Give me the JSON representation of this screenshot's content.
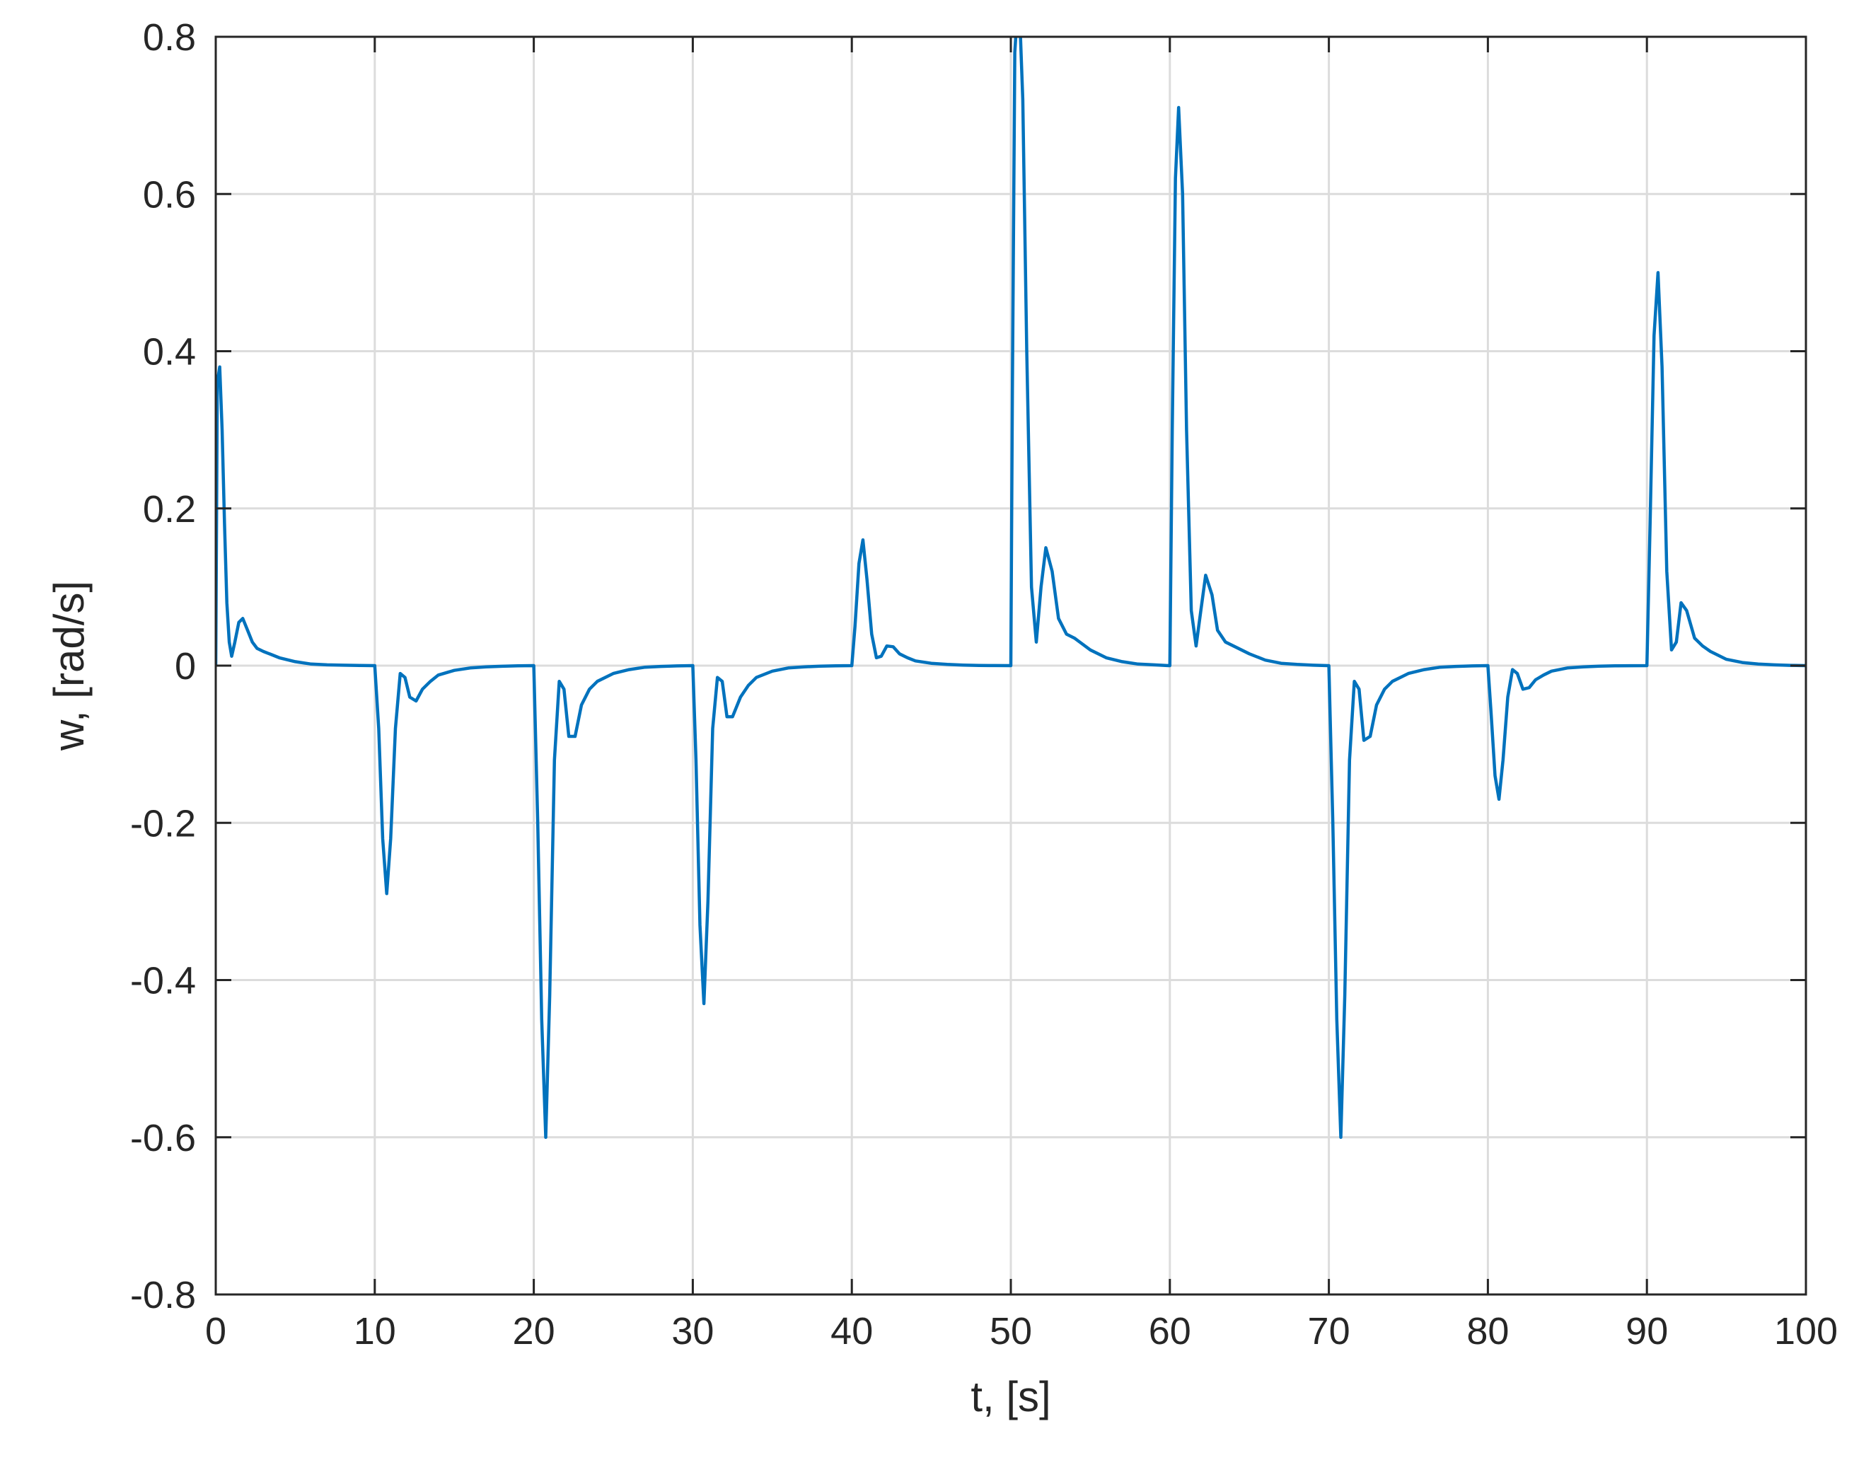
{
  "chart_data": {
    "type": "line",
    "title": "",
    "xlabel": "t, [s]",
    "ylabel": "w, [rad/s]",
    "xlim": [
      0,
      100
    ],
    "ylim": [
      -0.8,
      0.8
    ],
    "xticks": [
      "0",
      "10",
      "20",
      "30",
      "40",
      "50",
      "60",
      "70",
      "80",
      "90",
      "100"
    ],
    "yticks": [
      "0.8",
      "0.6",
      "0.4",
      "0.2",
      "0",
      "-0.2",
      "-0.4",
      "-0.6",
      "-0.8"
    ],
    "grid": true,
    "line_color": "#0072BD",
    "series": [
      {
        "x": [
          0,
          0.1,
          0.25,
          0.4,
          0.55,
          0.7,
          0.85,
          1.0,
          1.2,
          1.45,
          1.7,
          2.0,
          2.3,
          2.6,
          3.0,
          3.5,
          4,
          5,
          6,
          7,
          8,
          9,
          9.95,
          10.0,
          10.25,
          10.5,
          10.75,
          11.0,
          11.3,
          11.6,
          11.9,
          12.2,
          12.6,
          13.0,
          13.5,
          14,
          15,
          16,
          17,
          18,
          19,
          19.95,
          20.0,
          20.25,
          20.5,
          20.75,
          21.0,
          21.3,
          21.6,
          21.9,
          22.2,
          22.6,
          23.0,
          23.5,
          24,
          25,
          26,
          27,
          28,
          29,
          29.95,
          30.0,
          30.2,
          30.45,
          30.7,
          30.95,
          31.25,
          31.55,
          31.85,
          32.15,
          32.5,
          33.0,
          33.5,
          34,
          35,
          36,
          37,
          38,
          39,
          39.95,
          40.0,
          40.2,
          40.45,
          40.7,
          40.95,
          41.25,
          41.55,
          41.85,
          42.2,
          42.6,
          43.0,
          43.5,
          44,
          45,
          46,
          47,
          48,
          49,
          49.95,
          50.0,
          50.1,
          50.25,
          50.5,
          50.75,
          51.0,
          51.3,
          51.6,
          51.9,
          52.2,
          52.6,
          53.0,
          53.5,
          54.0,
          55,
          56,
          57,
          58,
          59,
          59.95,
          60.0,
          60.15,
          60.35,
          60.55,
          60.8,
          61.05,
          61.35,
          61.65,
          61.95,
          62.25,
          62.65,
          63.0,
          63.5,
          64,
          65,
          66,
          67,
          68,
          69,
          69.95,
          70.0,
          70.25,
          70.5,
          70.75,
          71.0,
          71.3,
          71.6,
          71.9,
          72.2,
          72.6,
          73.0,
          73.5,
          74,
          75,
          76,
          77,
          78,
          79,
          79.95,
          80.0,
          80.2,
          80.45,
          80.7,
          80.95,
          81.25,
          81.55,
          81.85,
          82.2,
          82.6,
          83.0,
          83.5,
          84,
          85,
          86,
          87,
          88,
          89,
          89.95,
          90.0,
          90.2,
          90.45,
          90.7,
          90.95,
          91.25,
          91.55,
          91.85,
          92.15,
          92.5,
          93.0,
          93.5,
          94,
          95,
          96,
          97,
          98,
          99,
          100
        ],
        "y": [
          0,
          0.36,
          0.38,
          0.3,
          0.18,
          0.08,
          0.03,
          0.012,
          0.03,
          0.055,
          0.06,
          0.045,
          0.03,
          0.022,
          0.018,
          0.014,
          0.01,
          0.005,
          0.002,
          0.001,
          0.0005,
          0.0002,
          0,
          0,
          -0.08,
          -0.22,
          -0.29,
          -0.22,
          -0.08,
          -0.01,
          -0.015,
          -0.04,
          -0.045,
          -0.03,
          -0.02,
          -0.012,
          -0.006,
          -0.003,
          -0.0015,
          -0.0008,
          -0.0003,
          0,
          0,
          -0.2,
          -0.45,
          -0.6,
          -0.42,
          -0.12,
          -0.02,
          -0.03,
          -0.09,
          -0.09,
          -0.05,
          -0.03,
          -0.02,
          -0.01,
          -0.005,
          -0.002,
          -0.001,
          -0.0004,
          0,
          0,
          -0.12,
          -0.33,
          -0.43,
          -0.3,
          -0.08,
          -0.015,
          -0.02,
          -0.065,
          -0.065,
          -0.04,
          -0.025,
          -0.015,
          -0.007,
          -0.003,
          -0.0015,
          -0.0007,
          -0.0003,
          0,
          0,
          0.05,
          0.13,
          0.16,
          0.11,
          0.04,
          0.01,
          0.012,
          0.025,
          0.024,
          0.015,
          0.01,
          0.006,
          0.003,
          0.0015,
          0.0007,
          0.0003,
          0.0001,
          0,
          0,
          0.35,
          0.78,
          0.86,
          0.72,
          0.4,
          0.1,
          0.03,
          0.1,
          0.15,
          0.12,
          0.06,
          0.04,
          0.035,
          0.02,
          0.01,
          0.005,
          0.002,
          0.001,
          0,
          0,
          0.3,
          0.62,
          0.71,
          0.6,
          0.3,
          0.07,
          0.025,
          0.07,
          0.115,
          0.09,
          0.045,
          0.03,
          0.025,
          0.015,
          0.007,
          0.003,
          0.0015,
          0.0005,
          0,
          0,
          -0.2,
          -0.45,
          -0.6,
          -0.42,
          -0.12,
          -0.02,
          -0.03,
          -0.095,
          -0.09,
          -0.05,
          -0.03,
          -0.02,
          -0.01,
          -0.005,
          -0.002,
          -0.001,
          -0.0004,
          0,
          0,
          -0.06,
          -0.14,
          -0.17,
          -0.12,
          -0.04,
          -0.005,
          -0.01,
          -0.03,
          -0.028,
          -0.018,
          -0.012,
          -0.007,
          -0.003,
          -0.0015,
          -0.0007,
          -0.0003,
          -0.0001,
          0,
          0,
          0.18,
          0.42,
          0.5,
          0.38,
          0.12,
          0.02,
          0.03,
          0.08,
          0.07,
          0.035,
          0.025,
          0.018,
          0.008,
          0.004,
          0.002,
          0.001,
          0.0004,
          0
        ]
      }
    ]
  }
}
